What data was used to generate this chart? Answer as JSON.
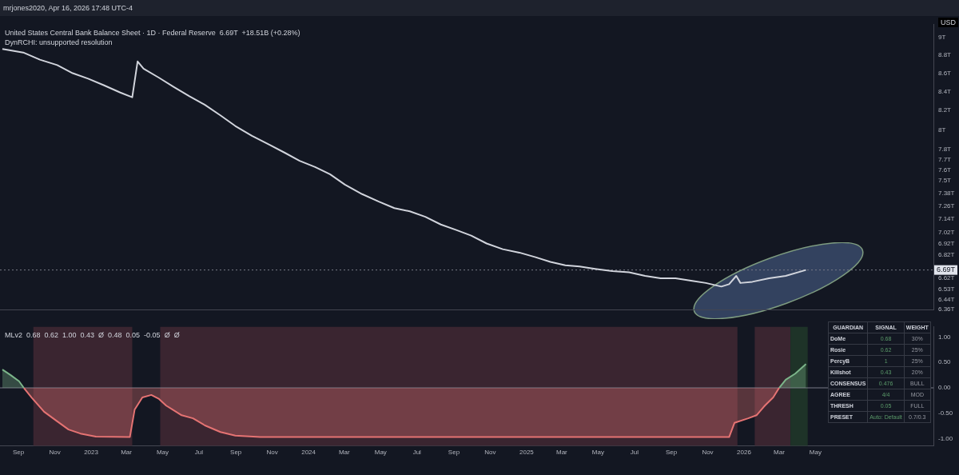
{
  "chart_data": [
    {
      "type": "line",
      "title": "United States Central Bank Balance Sheet · 1D · Federal Reserve  6.69T  +18.51B (+0.28%)",
      "subtitle": "DynRCHI: unsupported resolution",
      "ylabel": "USD",
      "annotations": [
        "mrjones2020, Apr 16, 2026 17:48 UTC-4"
      ],
      "log": "y",
      "tick_labels": "y",
      "xlim": [
        "2022-08-01",
        "2026-11-15"
      ],
      "ylim": [
        6.36,
        9.15
      ],
      "yticks": [
        {
          "value": 9,
          "label": "9T"
        },
        {
          "value": 8.8,
          "label": "8.8T"
        },
        {
          "value": 8.6,
          "label": "8.6T"
        },
        {
          "value": 8.4,
          "label": "8.4T"
        },
        {
          "value": 8.2,
          "label": "8.2T"
        },
        {
          "value": 8,
          "label": "8T"
        },
        {
          "value": 7.8,
          "label": "7.8T"
        },
        {
          "value": 7.7,
          "label": "7.7T"
        },
        {
          "value": 7.6,
          "label": "7.6T"
        },
        {
          "value": 7.5,
          "label": "7.5T"
        },
        {
          "value": 7.38,
          "label": "7.38T"
        },
        {
          "value": 7.26,
          "label": "7.26T"
        },
        {
          "value": 7.14,
          "label": "7.14T"
        },
        {
          "value": 7.02,
          "label": "7.02T"
        },
        {
          "value": 6.92,
          "label": "6.92T"
        },
        {
          "value": 6.82,
          "label": "6.82T"
        },
        {
          "value": 6.62,
          "label": "6.62T"
        },
        {
          "value": 6.53,
          "label": "6.53T"
        },
        {
          "value": 6.44,
          "label": "6.44T"
        },
        {
          "value": 6.36,
          "label": "6.36T"
        }
      ],
      "ref_lines": [
        {
          "axis": "y",
          "value": 6.69,
          "label": "6.69T",
          "color": "#787b86",
          "line_style": "dotted"
        }
      ],
      "series": [
        {
          "color": "#d1d4dc",
          "x": [
            "2022-08-05",
            "2022-09-09",
            "2022-10-07",
            "2022-11-05",
            "2022-12-01",
            "2022-12-27",
            "2023-01-22",
            "2023-02-19",
            "2023-03-11",
            "2023-03-20",
            "2023-03-30",
            "2023-04-25",
            "2023-05-20",
            "2023-06-15",
            "2023-07-11",
            "2023-08-06",
            "2023-08-31",
            "2023-09-28",
            "2023-10-27",
            "2023-11-22",
            "2023-12-17",
            "2024-01-12",
            "2024-02-06",
            "2024-03-02",
            "2024-03-31",
            "2024-04-28",
            "2024-05-24",
            "2024-06-19",
            "2024-07-15",
            "2024-08-10",
            "2024-09-05",
            "2024-09-30",
            "2024-10-26",
            "2024-11-22",
            "2024-12-20",
            "2025-01-16",
            "2025-02-10",
            "2025-03-07",
            "2025-03-31",
            "2025-04-26",
            "2025-05-25",
            "2025-06-22",
            "2025-07-19",
            "2025-08-14",
            "2025-09-08",
            "2025-10-04",
            "2025-10-29",
            "2025-11-24",
            "2025-12-07",
            "2025-12-19",
            "2025-12-26",
            "2026-01-15",
            "2026-02-12",
            "2026-03-12",
            "2026-04-15"
          ],
          "values": [
            8.87,
            8.83,
            8.75,
            8.69,
            8.6,
            8.54,
            8.47,
            8.39,
            8.34,
            8.73,
            8.65,
            8.55,
            8.45,
            8.35,
            8.26,
            8.15,
            8.04,
            7.94,
            7.85,
            7.77,
            7.69,
            7.63,
            7.56,
            7.46,
            7.37,
            7.3,
            7.24,
            7.21,
            7.16,
            7.09,
            7.04,
            6.99,
            6.92,
            6.87,
            6.84,
            6.8,
            6.76,
            6.73,
            6.72,
            6.7,
            6.68,
            6.67,
            6.64,
            6.62,
            6.62,
            6.6,
            6.58,
            6.55,
            6.57,
            6.64,
            6.58,
            6.59,
            6.62,
            6.64,
            6.69
          ]
        }
      ]
    },
    {
      "type": "area",
      "title": "MLv2  0.68  0.62  1.00  0.43  Ø  0.48  0.05  -0.05  Ø  Ø",
      "xlim": [
        "2022-08-01",
        "2026-11-15"
      ],
      "ylim": [
        -1.14,
        1.2
      ],
      "xticks": [
        {
          "value": "2022-09-01",
          "label": "Sep"
        },
        {
          "value": "2022-11-01",
          "label": "Nov"
        },
        {
          "value": "2023-01-01",
          "label": "2023"
        },
        {
          "value": "2023-03-01",
          "label": "Mar"
        },
        {
          "value": "2023-05-01",
          "label": "May"
        },
        {
          "value": "2023-07-01",
          "label": "Jul"
        },
        {
          "value": "2023-09-01",
          "label": "Sep"
        },
        {
          "value": "2023-11-01",
          "label": "Nov"
        },
        {
          "value": "2024-01-01",
          "label": "2024"
        },
        {
          "value": "2024-03-01",
          "label": "Mar"
        },
        {
          "value": "2024-05-01",
          "label": "May"
        },
        {
          "value": "2024-07-01",
          "label": "Jul"
        },
        {
          "value": "2024-09-01",
          "label": "Sep"
        },
        {
          "value": "2024-11-01",
          "label": "Nov"
        },
        {
          "value": "2025-01-01",
          "label": "2025"
        },
        {
          "value": "2025-03-01",
          "label": "Mar"
        },
        {
          "value": "2025-05-01",
          "label": "May"
        },
        {
          "value": "2025-07-01",
          "label": "Jul"
        },
        {
          "value": "2025-09-01",
          "label": "Sep"
        },
        {
          "value": "2025-11-01",
          "label": "Nov"
        },
        {
          "value": "2026-01-01",
          "label": "2026"
        },
        {
          "value": "2026-03-01",
          "label": "Mar"
        },
        {
          "value": "2026-05-01",
          "label": "May"
        }
      ],
      "yticks": [
        {
          "value": 1,
          "label": "1.00"
        },
        {
          "value": 0.5,
          "label": "0.50"
        },
        {
          "value": 0,
          "label": "0.00"
        },
        {
          "value": -0.5,
          "label": "-0.50"
        },
        {
          "value": -1,
          "label": "-1.00"
        }
      ],
      "ref_lines": [
        {
          "axis": "y",
          "value": 0,
          "color": "#787b86"
        }
      ],
      "bands": [
        {
          "axis": "x",
          "from": "2022-09-26",
          "to": "2023-03-11",
          "color": "#3a2530"
        },
        {
          "axis": "x",
          "from": "2023-04-27",
          "to": "2025-12-21",
          "color": "#3a2530"
        },
        {
          "axis": "x",
          "from": "2026-01-19",
          "to": "2026-03-20",
          "color": "#3a2530"
        },
        {
          "axis": "x",
          "from": "2026-03-20",
          "to": "2026-04-18",
          "color": "#1e3328"
        }
      ],
      "series": [
        {
          "color": "#7cb58a",
          "x": [
            "2022-08-05",
            "2022-08-19",
            "2022-09-02",
            "2022-09-10"
          ],
          "values": [
            0.36,
            0.25,
            0.13,
            0
          ]
        },
        {
          "color": "#e57373",
          "x": [
            "2022-09-10",
            "2022-09-23",
            "2022-10-14",
            "2022-11-05",
            "2022-11-24",
            "2022-12-14",
            "2023-01-09",
            "2023-03-07",
            "2023-03-15",
            "2023-03-28",
            "2023-04-12",
            "2023-04-25",
            "2023-05-07",
            "2023-06-02",
            "2023-06-21",
            "2023-07-11",
            "2023-08-06",
            "2023-08-31",
            "2023-10-12",
            "2025-12-07",
            "2025-12-16",
            "2026-01-08",
            "2026-01-22",
            "2026-02-05",
            "2026-02-19",
            "2026-03-01"
          ],
          "values": [
            0,
            -0.19,
            -0.47,
            -0.66,
            -0.82,
            -0.9,
            -0.96,
            -0.97,
            -0.43,
            -0.19,
            -0.14,
            -0.22,
            -0.35,
            -0.54,
            -0.6,
            -0.74,
            -0.87,
            -0.94,
            -0.97,
            -0.97,
            -0.69,
            -0.6,
            -0.54,
            -0.35,
            -0.19,
            0
          ]
        },
        {
          "color": "#7cb58a",
          "x": [
            "2026-03-01",
            "2026-03-12",
            "2026-03-28",
            "2026-04-15"
          ],
          "values": [
            0,
            0.16,
            0.28,
            0.47
          ]
        }
      ]
    },
    {
      "type": "other",
      "categories": [
        "GUARDIAN",
        "SIGNAL",
        "WEIGHT"
      ],
      "y_categories": [
        "DoMe",
        "Rosie",
        "PercyB",
        "Killshot",
        "CONSENSUS",
        "AGREE",
        "THRESH",
        "PRESET"
      ],
      "cell_labels": [
        [
          "0.68",
          "30%"
        ],
        [
          "0.62",
          "25%"
        ],
        [
          "1",
          "25%"
        ],
        [
          "0.43",
          "20%"
        ],
        [
          "0.476",
          "BULL"
        ],
        [
          "4/4",
          "MOD"
        ],
        [
          "0.05",
          "FULL"
        ],
        [
          "Auto: Default",
          "0.7/0.3"
        ]
      ]
    }
  ]
}
